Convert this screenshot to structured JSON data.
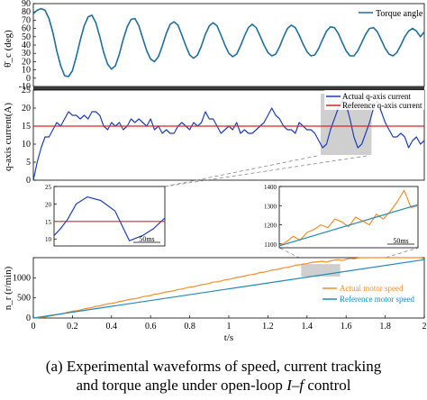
{
  "caption": {
    "line1": "(a) Experimental waveforms of speed, current tracking",
    "line2_pre": "and torque angle under open-loop ",
    "line2_italic": "I–f",
    "line2_post": " control"
  },
  "colors": {
    "torque": "#1f6f9c",
    "actual_current": "#1f3fb5",
    "reference_current": "#d62728",
    "actual_speed": "#f28e2b",
    "reference_speed": "#1f8ac0",
    "highlight": "#cfcfcf"
  },
  "chart_data": [
    {
      "id": "torque",
      "type": "line",
      "ylabel": "θ̄_c (deg)",
      "xlim": [
        0,
        2
      ],
      "ylim": [
        -10,
        90
      ],
      "yticks": [
        -10,
        0,
        10,
        20,
        30,
        40,
        50,
        60,
        70,
        80,
        90
      ],
      "legend": "top-right",
      "series": [
        {
          "name": "Torque angle",
          "x": [
            0,
            0.02,
            0.04,
            0.06,
            0.08,
            0.1,
            0.12,
            0.14,
            0.16,
            0.18,
            0.2,
            0.22,
            0.24,
            0.26,
            0.28,
            0.3,
            0.32,
            0.34,
            0.36,
            0.38,
            0.4,
            0.42,
            0.44,
            0.46,
            0.48,
            0.5,
            0.52,
            0.54,
            0.56,
            0.58,
            0.6,
            0.62,
            0.64,
            0.66,
            0.68,
            0.7,
            0.72,
            0.74,
            0.76,
            0.78,
            0.8,
            0.82,
            0.84,
            0.86,
            0.88,
            0.9,
            0.92,
            0.94,
            0.96,
            0.98,
            1.0,
            1.02,
            1.04,
            1.06,
            1.08,
            1.1,
            1.12,
            1.14,
            1.16,
            1.18,
            1.2,
            1.22,
            1.24,
            1.26,
            1.28,
            1.3,
            1.32,
            1.34,
            1.36,
            1.38,
            1.4,
            1.42,
            1.44,
            1.46,
            1.48,
            1.5,
            1.52,
            1.54,
            1.56,
            1.58,
            1.6,
            1.62,
            1.64,
            1.66,
            1.68,
            1.7,
            1.72,
            1.74,
            1.76,
            1.78,
            1.8,
            1.82,
            1.84,
            1.86,
            1.88,
            1.9,
            1.92,
            1.94,
            1.96,
            1.98,
            2.0
          ],
          "y": [
            78,
            82,
            84,
            82,
            72,
            55,
            33,
            15,
            3,
            2,
            9,
            26,
            46,
            63,
            74,
            76,
            67,
            50,
            31,
            17,
            11,
            15,
            29,
            47,
            62,
            71,
            72,
            63,
            48,
            33,
            23,
            20,
            26,
            39,
            54,
            65,
            68,
            64,
            52,
            39,
            28,
            24,
            28,
            39,
            53,
            63,
            67,
            63,
            52,
            40,
            30,
            26,
            29,
            39,
            51,
            61,
            65,
            61,
            51,
            40,
            31,
            27,
            29,
            38,
            50,
            60,
            64,
            61,
            52,
            41,
            32,
            27,
            28,
            36,
            47,
            57,
            62,
            61,
            54,
            43,
            33,
            27,
            27,
            33,
            43,
            53,
            60,
            61,
            56,
            46,
            36,
            29,
            27,
            31,
            40,
            50,
            57,
            60,
            57,
            50,
            56
          ]
        }
      ]
    },
    {
      "id": "current",
      "type": "line",
      "ylabel": "q-axis current(A)",
      "xlim": [
        0,
        2
      ],
      "ylim": [
        0,
        25
      ],
      "yticks": [
        0,
        5,
        10,
        15,
        20,
        25
      ],
      "legend": "top-right",
      "highlight": {
        "x": [
          1.47,
          1.73
        ],
        "y": [
          7,
          24
        ]
      },
      "series": [
        {
          "name": "Actual q-axis current",
          "x": [
            0,
            0.02,
            0.04,
            0.06,
            0.08,
            0.1,
            0.12,
            0.14,
            0.16,
            0.18,
            0.2,
            0.22,
            0.24,
            0.26,
            0.28,
            0.3,
            0.32,
            0.34,
            0.36,
            0.38,
            0.4,
            0.42,
            0.44,
            0.46,
            0.48,
            0.5,
            0.52,
            0.54,
            0.56,
            0.58,
            0.6,
            0.62,
            0.64,
            0.66,
            0.68,
            0.7,
            0.72,
            0.74,
            0.76,
            0.78,
            0.8,
            0.82,
            0.84,
            0.86,
            0.88,
            0.9,
            0.92,
            0.94,
            0.96,
            0.98,
            1.0,
            1.02,
            1.04,
            1.06,
            1.08,
            1.1,
            1.12,
            1.14,
            1.16,
            1.18,
            1.2,
            1.22,
            1.24,
            1.26,
            1.28,
            1.3,
            1.32,
            1.34,
            1.36,
            1.38,
            1.4,
            1.42,
            1.44,
            1.46,
            1.48,
            1.5,
            1.52,
            1.54,
            1.56,
            1.58,
            1.6,
            1.62,
            1.64,
            1.66,
            1.68,
            1.7,
            1.72,
            1.74,
            1.76,
            1.78,
            1.8,
            1.82,
            1.84,
            1.86,
            1.88,
            1.9,
            1.92,
            1.94,
            1.96,
            1.98,
            2.0
          ],
          "y": [
            0,
            5,
            9,
            12,
            12,
            14,
            16,
            15,
            17,
            19,
            18,
            18,
            17,
            18,
            17,
            19,
            19,
            18,
            15,
            14,
            16,
            15,
            16,
            14,
            15,
            17,
            16,
            17,
            16,
            15,
            17,
            14,
            15,
            13,
            14,
            13,
            13,
            15,
            16,
            15,
            14,
            16,
            15,
            16,
            19,
            17,
            17,
            15,
            13,
            14,
            15,
            14,
            16,
            13,
            14,
            13,
            13,
            14,
            15,
            16,
            18,
            20,
            18,
            17,
            15,
            14,
            14,
            13,
            16,
            15,
            14,
            14,
            13,
            11,
            9,
            10,
            14,
            17,
            20,
            22,
            21,
            17,
            12,
            9,
            10,
            13,
            16,
            20,
            22,
            19,
            16,
            14,
            12,
            12,
            13,
            12,
            9,
            11,
            12,
            10,
            11
          ]
        },
        {
          "name": "Reference q-axis current",
          "x": [
            0,
            0.2,
            2.0
          ],
          "y": [
            15,
            15,
            15
          ]
        }
      ]
    },
    {
      "id": "current_zoom",
      "type": "line",
      "xlim": [
        0,
        1
      ],
      "ylim": [
        8,
        25
      ],
      "yticks": [
        10,
        15,
        20,
        25
      ],
      "annotation": "50ms",
      "series": [
        {
          "name": "",
          "x": [
            0,
            0.06,
            0.12,
            0.2,
            0.3,
            0.42,
            0.55,
            0.68,
            0.8,
            0.9,
            1.0
          ],
          "y": [
            11,
            13,
            15.5,
            20,
            22,
            21,
            18,
            9.5,
            11,
            13,
            16
          ]
        },
        {
          "name": "",
          "x": [
            0,
            1
          ],
          "y": [
            15,
            15
          ]
        }
      ]
    },
    {
      "id": "speed_zoom",
      "type": "line",
      "xlim": [
        0,
        1
      ],
      "ylim": [
        1080,
        1400
      ],
      "yticks": [
        1100,
        1200,
        1300,
        1400
      ],
      "annotation": "50ms",
      "series": [
        {
          "name": "",
          "x": [
            0,
            0.05,
            0.1,
            0.15,
            0.2,
            0.25,
            0.3,
            0.35,
            0.4,
            0.45,
            0.5,
            0.55,
            0.6,
            0.65,
            0.7,
            0.75,
            0.8,
            0.85,
            0.9,
            0.95,
            1.0
          ],
          "y": [
            1090,
            1110,
            1140,
            1120,
            1160,
            1175,
            1200,
            1185,
            1230,
            1215,
            1190,
            1240,
            1220,
            1200,
            1255,
            1230,
            1270,
            1320,
            1380,
            1290,
            1300
          ]
        },
        {
          "name": "",
          "x": [
            0,
            1
          ],
          "y": [
            1090,
            1305
          ]
        }
      ]
    },
    {
      "id": "speed",
      "type": "line",
      "ylabel": "n_r (r/min)",
      "xlabel": "t/s",
      "xlim": [
        0,
        2
      ],
      "ylim": [
        0,
        1500
      ],
      "xticks": [
        0,
        0.2,
        0.4,
        0.6,
        0.8,
        1,
        1.2,
        1.4,
        1.6,
        1.8,
        2
      ],
      "yticks": [
        0,
        500,
        1000
      ],
      "legend": "bottom-right",
      "highlight": {
        "x": [
          1.37,
          1.57
        ],
        "y": [
          1030,
          1340
        ]
      },
      "series": [
        {
          "name": "Actual motor speed",
          "x": [
            0,
            0.02,
            0.04,
            0.06,
            0.08,
            0.1,
            0.12,
            0.14,
            0.16,
            0.18,
            0.2,
            0.22,
            0.24,
            0.26,
            0.28,
            0.3,
            0.32,
            0.34,
            0.36,
            0.38,
            0.4,
            0.42,
            0.44,
            0.46,
            0.48,
            0.5,
            0.52,
            0.54,
            0.56,
            0.58,
            0.6,
            0.62,
            0.64,
            0.66,
            0.68,
            0.7,
            0.72,
            0.74,
            0.76,
            0.78,
            0.8,
            0.82,
            0.84,
            0.86,
            0.88,
            0.9,
            0.92,
            0.94,
            0.96,
            0.98,
            1.0,
            1.02,
            1.04,
            1.06,
            1.08,
            1.1,
            1.12,
            1.14,
            1.16,
            1.18,
            1.2,
            1.22,
            1.24,
            1.26,
            1.28,
            1.3,
            1.32,
            1.34,
            1.36,
            1.38,
            1.4,
            1.42,
            1.44,
            1.46,
            1.48,
            1.5,
            1.52,
            1.54,
            1.56,
            1.58,
            1.6,
            1.62,
            1.64,
            1.66,
            1.68,
            1.7,
            1.72,
            1.74,
            1.76,
            1.78,
            1.8,
            1.82,
            1.84,
            1.86,
            1.88,
            1.9,
            1.92,
            1.94,
            1.96,
            1.98,
            2.0
          ],
          "y": [
            0,
            5,
            18,
            25,
            45,
            60,
            88,
            95,
            120,
            150,
            170,
            180,
            200,
            225,
            245,
            260,
            290,
            300,
            330,
            350,
            365,
            380,
            410,
            425,
            450,
            470,
            480,
            500,
            530,
            545,
            560,
            590,
            600,
            625,
            650,
            660,
            680,
            710,
            720,
            745,
            770,
            780,
            800,
            830,
            840,
            860,
            890,
            900,
            920,
            950,
            960,
            980,
            1010,
            1020,
            1040,
            1070,
            1080,
            1100,
            1130,
            1140,
            1160,
            1190,
            1200,
            1220,
            1250,
            1260,
            1280,
            1310,
            1320,
            1340,
            1350,
            1380,
            1390,
            1400,
            1410,
            1390,
            1420,
            1440,
            1450,
            1430,
            1460,
            1480,
            1470,
            1490,
            1510,
            1500,
            1520,
            1540,
            1530,
            1550,
            1570,
            1560,
            1580,
            1600,
            1590,
            1610,
            1630,
            1620,
            1640,
            1650,
            1470
          ]
        },
        {
          "name": "Reference motor speed",
          "x": [
            0,
            2
          ],
          "y": [
            0,
            1450
          ]
        }
      ]
    }
  ]
}
